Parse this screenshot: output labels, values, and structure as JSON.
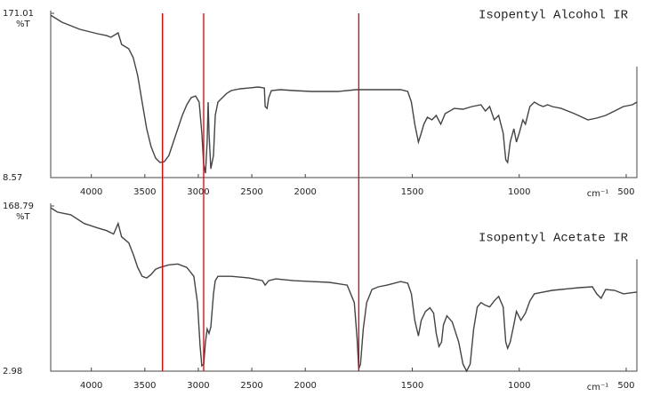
{
  "chart_data": [
    {
      "type": "line",
      "title": "Isopentyl Alcohol IR",
      "ylabel": "%T",
      "xlabel": "cm⁻¹",
      "color": "#444444",
      "xlim": [
        4380,
        450
      ],
      "x_scale_doubles_below": 2000,
      "xticks": [
        4000,
        3500,
        3000,
        2500,
        2000,
        1500,
        1000,
        500
      ],
      "ylim": [
        8.57,
        171.01
      ],
      "yticks": [
        8.57,
        171.01
      ],
      "x": [
        4380,
        4275,
        4108,
        3942,
        3858,
        3817,
        3750,
        3717,
        3650,
        3608,
        3567,
        3525,
        3483,
        3442,
        3400,
        3358,
        3317,
        3275,
        3233,
        3192,
        3150,
        3108,
        3067,
        3025,
        2992,
        2967,
        2950,
        2933,
        2917,
        2908,
        2900,
        2883,
        2858,
        2842,
        2817,
        2775,
        2733,
        2692,
        2608,
        2525,
        2442,
        2383,
        2375,
        2358,
        2342,
        2317,
        2233,
        2108,
        1971,
        1846,
        1763,
        1679,
        1554,
        1521,
        1504,
        1488,
        1471,
        1458,
        1446,
        1429,
        1408,
        1388,
        1367,
        1346,
        1304,
        1263,
        1221,
        1179,
        1158,
        1138,
        1117,
        1096,
        1075,
        1063,
        1054,
        1042,
        1025,
        1013,
        1000,
        983,
        971,
        950,
        929,
        908,
        888,
        867,
        846,
        804,
        742,
        679,
        638,
        596,
        554,
        513,
        471,
        450
      ],
      "values": [
        169.2,
        162.2,
        155.2,
        150.8,
        149.0,
        147.3,
        151.7,
        140.3,
        135.9,
        127.1,
        109.5,
        83.2,
        56.9,
        39.3,
        27.9,
        23.5,
        24.4,
        30.5,
        43.7,
        56.9,
        70.0,
        80.6,
        87.6,
        89.3,
        83.2,
        52.5,
        21.7,
        12.9,
        43.7,
        83.2,
        52.5,
        17.3,
        30.5,
        70.0,
        83.2,
        87.6,
        92.0,
        94.6,
        96.4,
        97.2,
        98.1,
        97.2,
        78.8,
        77.0,
        87.6,
        94.6,
        95.5,
        94.6,
        93.7,
        93.7,
        95.5,
        95.5,
        95.5,
        93.7,
        83.2,
        61.3,
        43.7,
        52.5,
        61.3,
        68.3,
        65.6,
        70.0,
        61.3,
        71.8,
        77.0,
        76.2,
        78.8,
        80.6,
        74.4,
        78.8,
        65.6,
        70.0,
        52.5,
        26.1,
        23.5,
        43.7,
        56.9,
        43.7,
        52.5,
        65.6,
        61.3,
        78.8,
        83.2,
        80.6,
        78.8,
        80.6,
        78.8,
        77.0,
        71.8,
        65.6,
        67.4,
        70.0,
        74.4,
        78.8,
        80.6,
        83.2
      ]
    },
    {
      "type": "line",
      "title": "Isopentyl Acetate IR",
      "ylabel": "%T",
      "xlabel": "cm⁻¹",
      "color": "#444444",
      "xlim": [
        4380,
        450
      ],
      "x_scale_doubles_below": 2000,
      "xticks": [
        4000,
        3500,
        3000,
        2500,
        2000,
        1500,
        1000,
        500
      ],
      "ylim": [
        2.98,
        168.79
      ],
      "yticks": [
        2.98,
        168.79
      ],
      "x": [
        4380,
        4317,
        4192,
        4067,
        3942,
        3858,
        3792,
        3750,
        3717,
        3650,
        3608,
        3567,
        3525,
        3483,
        3442,
        3400,
        3358,
        3275,
        3192,
        3108,
        3042,
        3008,
        2983,
        2967,
        2950,
        2933,
        2917,
        2900,
        2883,
        2858,
        2842,
        2817,
        2692,
        2525,
        2400,
        2375,
        2342,
        2275,
        2108,
        1971,
        1888,
        1804,
        1771,
        1758,
        1750,
        1742,
        1729,
        1713,
        1688,
        1658,
        1617,
        1554,
        1521,
        1504,
        1488,
        1471,
        1458,
        1438,
        1417,
        1400,
        1388,
        1375,
        1363,
        1354,
        1338,
        1313,
        1283,
        1263,
        1246,
        1229,
        1213,
        1196,
        1179,
        1158,
        1138,
        1117,
        1096,
        1075,
        1063,
        1054,
        1042,
        1025,
        1013,
        992,
        971,
        950,
        929,
        888,
        846,
        804,
        721,
        658,
        638,
        617,
        596,
        554,
        513,
        450
      ],
      "values": [
        167.0,
        162.6,
        160.0,
        151.2,
        146.8,
        144.1,
        140.6,
        151.2,
        137.9,
        131.7,
        120.3,
        107.1,
        98.2,
        96.5,
        100.0,
        105.3,
        107.1,
        109.7,
        110.6,
        107.1,
        98.2,
        71.8,
        27.7,
        8.3,
        10.0,
        32.1,
        45.3,
        40.9,
        47.1,
        80.6,
        93.8,
        98.2,
        98.2,
        96.5,
        93.8,
        89.4,
        93.8,
        95.6,
        93.8,
        92.9,
        92.1,
        89.4,
        71.8,
        36.5,
        5.6,
        10.0,
        45.3,
        71.8,
        85.0,
        87.7,
        89.4,
        92.9,
        91.2,
        80.6,
        54.1,
        38.3,
        54.1,
        63.0,
        66.5,
        61.2,
        41.0,
        27.7,
        32.1,
        49.7,
        58.5,
        52.4,
        32.1,
        10.0,
        3.0,
        10.0,
        45.3,
        67.4,
        71.8,
        69.1,
        67.4,
        73.5,
        78.0,
        67.4,
        32.1,
        25.9,
        32.1,
        49.7,
        63.0,
        54.1,
        61.2,
        73.5,
        80.6,
        82.4,
        84.1,
        85.0,
        86.8,
        87.7,
        80.6,
        76.2,
        85.0,
        84.1,
        80.6,
        82.4
      ]
    }
  ],
  "annotation_lines": {
    "color": "#e00000",
    "x": [
      3335,
      2950,
      1750
    ]
  }
}
